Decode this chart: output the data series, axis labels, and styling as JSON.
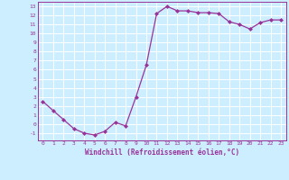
{
  "x": [
    0,
    1,
    2,
    3,
    4,
    5,
    6,
    7,
    8,
    9,
    10,
    11,
    12,
    13,
    14,
    15,
    16,
    17,
    18,
    19,
    20,
    21,
    22,
    23
  ],
  "y": [
    2.5,
    1.5,
    0.5,
    -0.5,
    -1.0,
    -1.2,
    -0.8,
    0.2,
    -0.2,
    3.0,
    6.5,
    12.2,
    13.0,
    12.5,
    12.5,
    12.3,
    12.3,
    12.2,
    11.3,
    11.0,
    10.5,
    11.2,
    11.5,
    11.5
  ],
  "line_color": "#993399",
  "marker": "D",
  "markersize": 2,
  "linewidth": 0.9,
  "xlim": [
    -0.5,
    23.5
  ],
  "ylim": [
    -1.8,
    13.5
  ],
  "xticks": [
    0,
    1,
    2,
    3,
    4,
    5,
    6,
    7,
    8,
    9,
    10,
    11,
    12,
    13,
    14,
    15,
    16,
    17,
    18,
    19,
    20,
    21,
    22,
    23
  ],
  "yticks": [
    -1,
    0,
    1,
    2,
    3,
    4,
    5,
    6,
    7,
    8,
    9,
    10,
    11,
    12,
    13
  ],
  "xlabel": "Windchill (Refroidissement éolien,°C)",
  "bg_color": "#cceeff",
  "grid_color": "#ffffff",
  "tick_color": "#993399",
  "xlabel_color": "#993399"
}
